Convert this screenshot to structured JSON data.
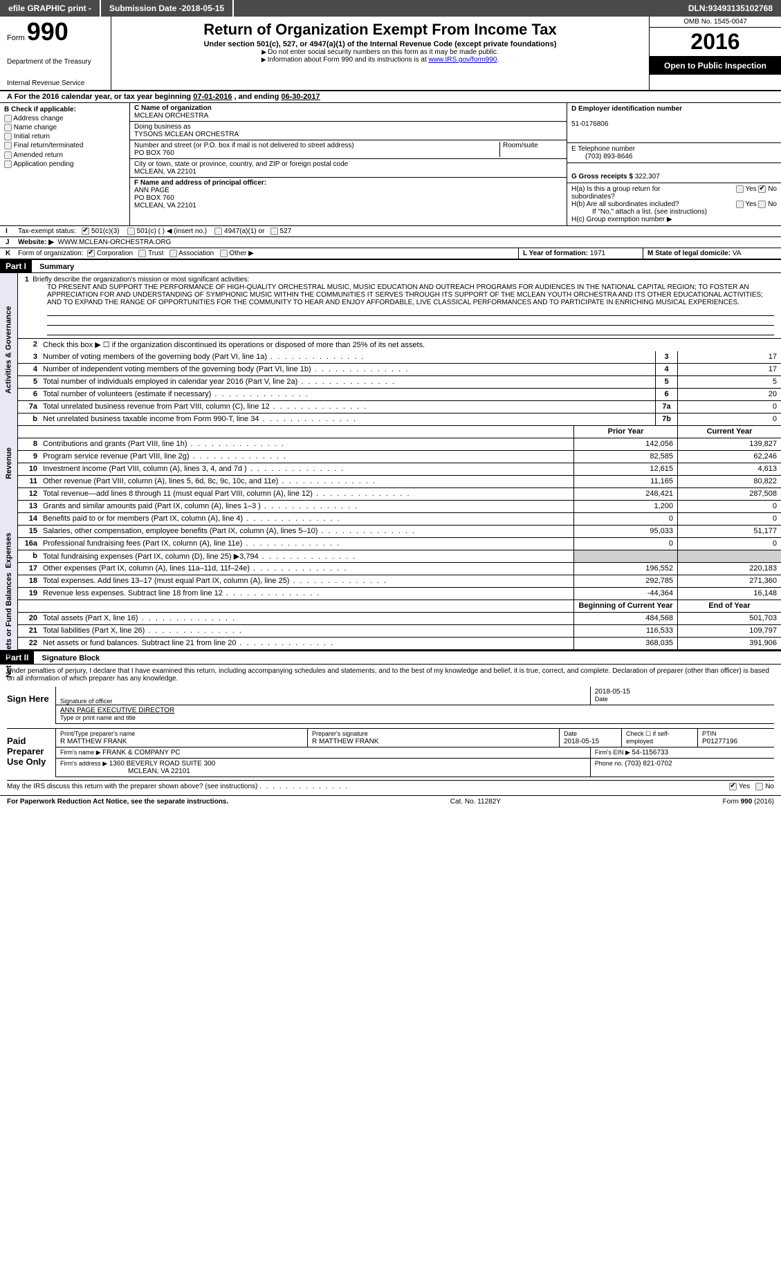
{
  "topbar": {
    "efile": "efile GRAPHIC print -",
    "submission_label": "Submission Date - ",
    "submission_date": "2018-05-15",
    "dln_label": "DLN: ",
    "dln": "93493135102768"
  },
  "header": {
    "form_word": "Form",
    "form_num": "990",
    "dept1": "Department of the Treasury",
    "dept2": "Internal Revenue Service",
    "title": "Return of Organization Exempt From Income Tax",
    "sub": "Under section 501(c), 527, or 4947(a)(1) of the Internal Revenue Code (except private foundations)",
    "hint1": "Do not enter social security numbers on this form as it may be made public.",
    "hint2_pre": "Information about Form 990 and its instructions is at ",
    "hint2_link": "www.IRS.gov/form990",
    "omb": "OMB No. 1545-0047",
    "year": "2016",
    "public": "Open to Public Inspection"
  },
  "section_a": {
    "text_pre": "A   For the 2016 calendar year, or tax year beginning ",
    "begin": "07-01-2016",
    "mid": "  , and ending ",
    "end": "06-30-2017"
  },
  "col_b": {
    "title": "B Check if applicable:",
    "addr_change": "Address change",
    "name_change": "Name change",
    "initial": "Initial return",
    "final": "Final return/terminated",
    "amended": "Amended return",
    "app_pending": "Application pending"
  },
  "col_c": {
    "name_lbl": "C Name of organization",
    "name": "MCLEAN ORCHESTRA",
    "dba_lbl": "Doing business as",
    "dba": "TYSONS MCLEAN ORCHESTRA",
    "street_lbl": "Number and street (or P.O. box if mail is not delivered to street address)",
    "room_lbl": "Room/suite",
    "street": "PO BOX 760",
    "city_lbl": "City or town, state or province, country, and ZIP or foreign postal code",
    "city": "MCLEAN, VA  22101",
    "f_lbl": "F Name and address of principal officer:",
    "f_name": "ANN PAGE",
    "f_addr1": "PO BOX 760",
    "f_addr2": "MCLEAN, VA  22101"
  },
  "col_d": {
    "ein_lbl": "D Employer identification number",
    "ein": "51-0176806",
    "phone_lbl": "E Telephone number",
    "phone": "(703) 893-8646",
    "gross_lbl": "G Gross receipts $ ",
    "gross": "322,307",
    "ha_lbl": "H(a)  Is this a group return for subordinates?",
    "hb_lbl": "H(b)  Are all subordinates included?",
    "hb_note": "If \"No,\" attach a list. (see instructions)",
    "hc_lbl": "H(c)  Group exemption number ▶",
    "yes": "Yes",
    "no": "No"
  },
  "line_i": {
    "lbl": "I",
    "text": "Tax-exempt status:",
    "opt1": "501(c)(3)",
    "opt2": "501(c) (   ) ◀ (insert no.)",
    "opt3": "4947(a)(1) or",
    "opt4": "527"
  },
  "line_j": {
    "lbl": "J",
    "text": "Website: ▶",
    "url": "WWW.MCLEAN-ORCHESTRA.ORG"
  },
  "line_k": {
    "lbl": "K",
    "text": "Form of organization:",
    "corp": "Corporation",
    "trust": "Trust",
    "assoc": "Association",
    "other": "Other ▶",
    "l_lbl": "L Year of formation: ",
    "l_val": "1971",
    "m_lbl": "M State of legal domicile: ",
    "m_val": "VA"
  },
  "part1": {
    "hdr": "Part I",
    "title": "Summary"
  },
  "mission": {
    "lbl": "1",
    "intro": "Briefly describe the organization's mission or most significant activities:",
    "text": "TO PRESENT AND SUPPORT THE PERFORMANCE OF HIGH-QUALITY ORCHESTRAL MUSIC, MUSIC EDUCATION AND OUTREACH PROGRAMS FOR AUDIENCES IN THE NATIONAL CAPITAL REGION; TO FOSTER AN APPRECIATION FOR AND UNDERSTANDING OF SYMPHONIC MUSIC WITHIN THE COMMUNITIES IT SERVES THROUGH ITS SUPPORT OF THE MCLEAN YOUTH ORCHESTRA AND ITS OTHER EDUCATIONAL ACTIVITIES; AND TO EXPAND THE RANGE OF OPPORTUNITIES FOR THE COMMUNITY TO HEAR AND ENJOY AFFORDABLE, LIVE CLASSICAL PERFORMANCES AND TO PARTICIPATE IN ENRICHING MUSICAL EXPERIENCES."
  },
  "gov_lines": [
    {
      "n": "2",
      "d": "Check this box ▶ ☐  if the organization discontinued its operations or disposed of more than 25% of its net assets."
    },
    {
      "n": "3",
      "d": "Number of voting members of the governing body (Part VI, line 1a)",
      "box": "3",
      "v": "17"
    },
    {
      "n": "4",
      "d": "Number of independent voting members of the governing body (Part VI, line 1b)",
      "box": "4",
      "v": "17"
    },
    {
      "n": "5",
      "d": "Total number of individuals employed in calendar year 2016 (Part V, line 2a)",
      "box": "5",
      "v": "5"
    },
    {
      "n": "6",
      "d": "Total number of volunteers (estimate if necessary)",
      "box": "6",
      "v": "20"
    },
    {
      "n": "7a",
      "d": "Total unrelated business revenue from Part VIII, column (C), line 12",
      "box": "7a",
      "v": "0"
    },
    {
      "n": "b",
      "d": "Net unrelated business taxable income from Form 990-T, line 34",
      "box": "7b",
      "v": "0"
    }
  ],
  "rev_head": {
    "prior": "Prior Year",
    "curr": "Current Year"
  },
  "rev_lines": [
    {
      "n": "8",
      "d": "Contributions and grants (Part VIII, line 1h)",
      "p": "142,056",
      "c": "139,827"
    },
    {
      "n": "9",
      "d": "Program service revenue (Part VIII, line 2g)",
      "p": "82,585",
      "c": "62,246"
    },
    {
      "n": "10",
      "d": "Investment income (Part VIII, column (A), lines 3, 4, and 7d )",
      "p": "12,615",
      "c": "4,613"
    },
    {
      "n": "11",
      "d": "Other revenue (Part VIII, column (A), lines 5, 6d, 8c, 9c, 10c, and 11e)",
      "p": "11,165",
      "c": "80,822"
    },
    {
      "n": "12",
      "d": "Total revenue—add lines 8 through 11 (must equal Part VIII, column (A), line 12)",
      "p": "248,421",
      "c": "287,508"
    }
  ],
  "exp_lines": [
    {
      "n": "13",
      "d": "Grants and similar amounts paid (Part IX, column (A), lines 1–3 )",
      "p": "1,200",
      "c": "0"
    },
    {
      "n": "14",
      "d": "Benefits paid to or for members (Part IX, column (A), line 4)",
      "p": "0",
      "c": "0"
    },
    {
      "n": "15",
      "d": "Salaries, other compensation, employee benefits (Part IX, column (A), lines 5–10)",
      "p": "95,033",
      "c": "51,177"
    },
    {
      "n": "16a",
      "d": "Professional fundraising fees (Part IX, column (A), line 11e)",
      "p": "0",
      "c": "0"
    },
    {
      "n": "b",
      "d": "Total fundraising expenses (Part IX, column (D), line 25) ▶3,794",
      "p": "",
      "c": "",
      "gray": true
    },
    {
      "n": "17",
      "d": "Other expenses (Part IX, column (A), lines 11a–11d, 11f–24e)",
      "p": "196,552",
      "c": "220,183"
    },
    {
      "n": "18",
      "d": "Total expenses. Add lines 13–17 (must equal Part IX, column (A), line 25)",
      "p": "292,785",
      "c": "271,360"
    },
    {
      "n": "19",
      "d": "Revenue less expenses. Subtract line 18 from line 12",
      "p": "-44,364",
      "c": "16,148"
    }
  ],
  "net_head": {
    "prior": "Beginning of Current Year",
    "curr": "End of Year"
  },
  "net_lines": [
    {
      "n": "20",
      "d": "Total assets (Part X, line 16)",
      "p": "484,568",
      "c": "501,703"
    },
    {
      "n": "21",
      "d": "Total liabilities (Part X, line 26)",
      "p": "116,533",
      "c": "109,797"
    },
    {
      "n": "22",
      "d": "Net assets or fund balances. Subtract line 21 from line 20",
      "p": "368,035",
      "c": "391,906"
    }
  ],
  "part2": {
    "hdr": "Part II",
    "title": "Signature Block"
  },
  "sig": {
    "perjury": "Under penalties of perjury, I declare that I have examined this return, including accompanying schedules and statements, and to the best of my knowledge and belief, it is true, correct, and complete. Declaration of preparer (other than officer) is based on all information of which preparer has any knowledge.",
    "sign_here": "Sign Here",
    "sig_officer_lbl": "Signature of officer",
    "date_lbl": "Date",
    "sig_date": "2018-05-15",
    "officer_name": "ANN PAGE EXECUTIVE DIRECTOR",
    "officer_name_lbl": "Type or print name and title",
    "paid": "Paid Preparer Use Only",
    "prep_name_lbl": "Print/Type preparer's name",
    "prep_name": "R MATTHEW FRANK",
    "prep_sig_lbl": "Preparer's signature",
    "prep_sig": "R MATTHEW FRANK",
    "prep_date_lbl": "Date",
    "prep_date": "2018-05-15",
    "self_emp": "Check ☐ if self-employed",
    "ptin_lbl": "PTIN",
    "ptin": "P01277196",
    "firm_name_lbl": "Firm's name      ▶ ",
    "firm_name": "FRANK & COMPANY PC",
    "firm_ein_lbl": "Firm's EIN ▶ ",
    "firm_ein": "54-1156733",
    "firm_addr_lbl": "Firm's address ▶ ",
    "firm_addr": "1360 BEVERLY ROAD SUITE 300",
    "firm_addr2": "MCLEAN, VA  22101",
    "firm_phone_lbl": "Phone no. ",
    "firm_phone": "(703) 821-0702",
    "discuss": "May the IRS discuss this return with the preparer shown above? (see instructions)",
    "discuss_yes": "Yes",
    "discuss_no": "No"
  },
  "footer": {
    "left": "For Paperwork Reduction Act Notice, see the separate instructions.",
    "mid": "Cat. No. 11282Y",
    "right_form": "Form ",
    "right_num": "990",
    "right_year": " (2016)"
  },
  "side_tabs": {
    "gov": "Activities & Governance",
    "rev": "Revenue",
    "exp": "Expenses",
    "net": "Net Assets or Fund Balances"
  }
}
